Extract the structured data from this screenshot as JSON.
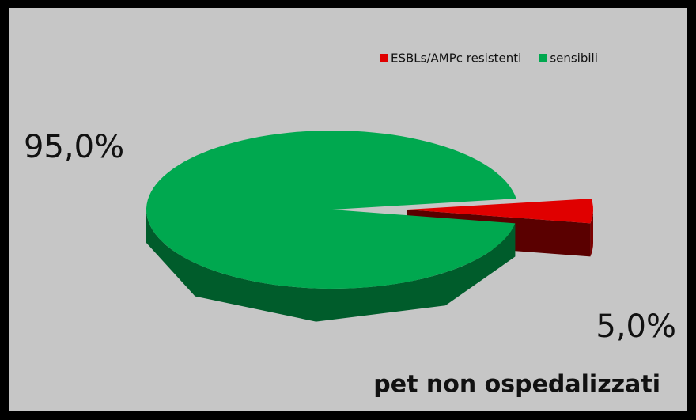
{
  "chart_data": {
    "type": "pie",
    "title": "pet non ospedalizzati",
    "categories": [
      "ESBLs/AMPc resistenti",
      "sensibili"
    ],
    "values": [
      5.0,
      95.0
    ],
    "value_labels": [
      "5,0%",
      "95,0%"
    ],
    "colors": [
      "#e00000",
      "#00a84f"
    ],
    "legend": "top-right"
  }
}
